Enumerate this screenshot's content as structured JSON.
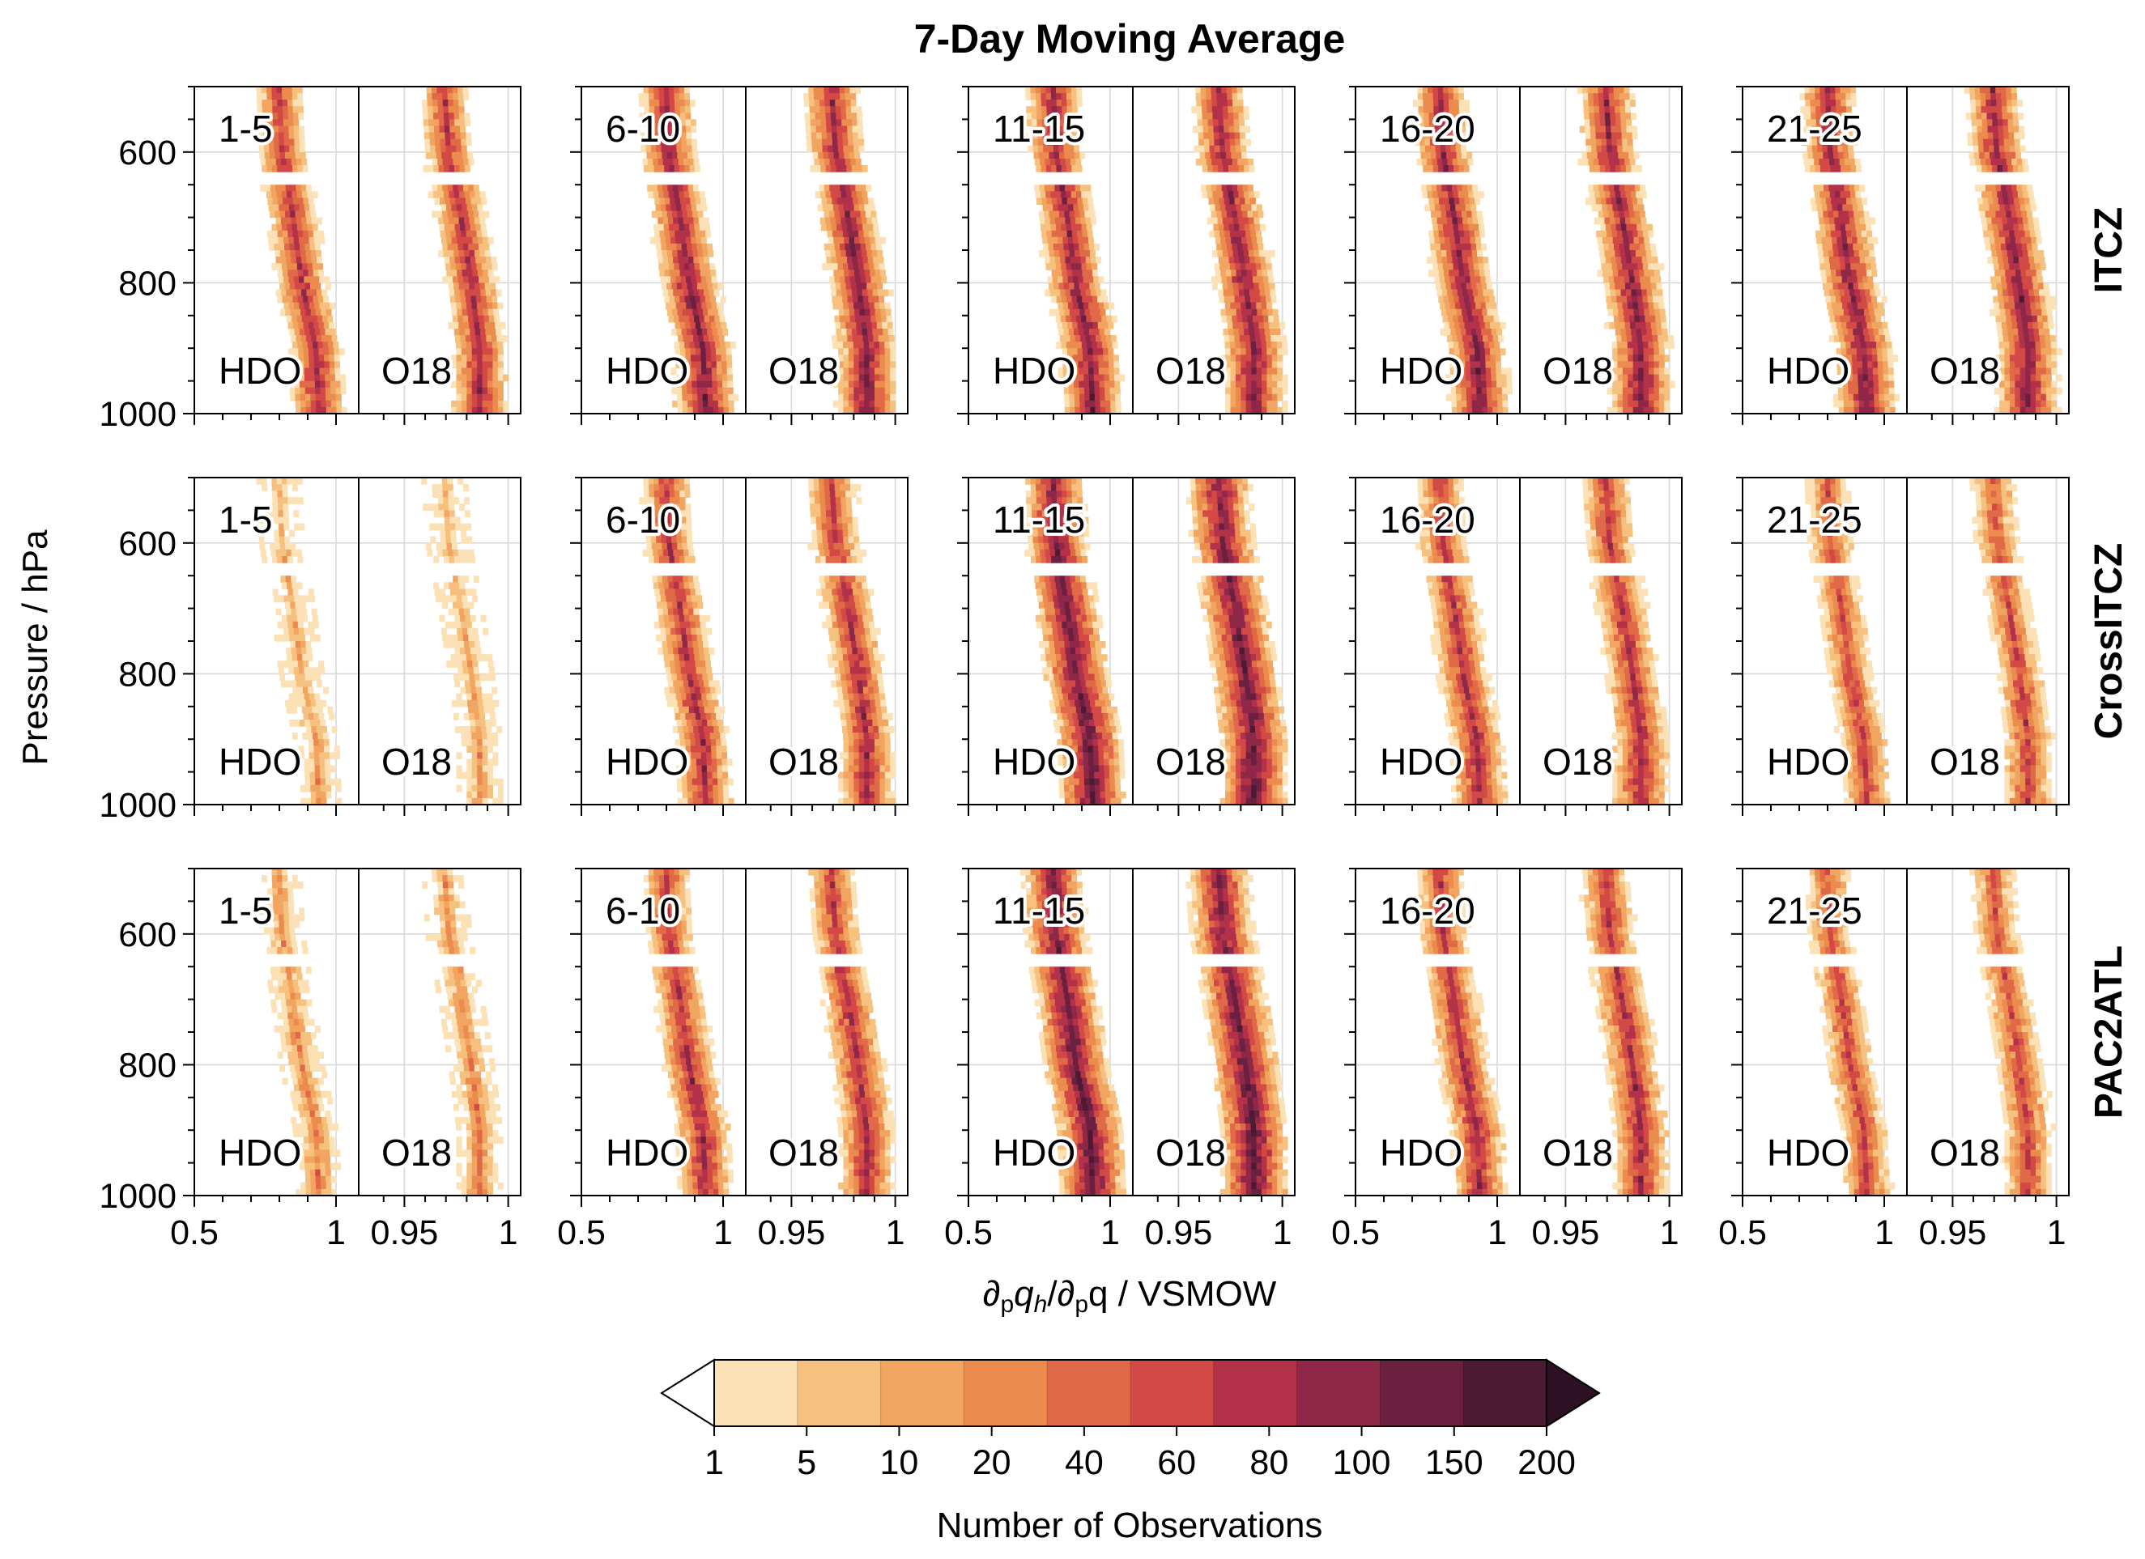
{
  "chart_data": {
    "type": "heatmap",
    "title": "7-Day Moving Average",
    "ylabel": "Pressure / hPa",
    "xlabel_parts": [
      "∂",
      "p",
      "q",
      "h",
      "/∂",
      "p",
      "q / VSMOW"
    ],
    "row_labels": [
      "ITCZ",
      "CrossITCZ",
      "PAC2ATL"
    ],
    "column_labels": [
      "1-5",
      "6-10",
      "11-15",
      "16-20",
      "21-25"
    ],
    "species": [
      "HDO",
      "O18"
    ],
    "y_ticks": [
      600,
      800,
      1000
    ],
    "ylim": [
      500,
      1000
    ],
    "hdo_xlim": [
      0.5,
      1.08
    ],
    "hdo_xticks": [
      0.5,
      1
    ],
    "hdo_xtick_labels": [
      "0.5",
      "1"
    ],
    "o18_xlim": [
      0.928,
      1.006
    ],
    "o18_xticks": [
      0.95,
      1
    ],
    "o18_xtick_labels": [
      "0.95",
      "1"
    ],
    "colorbar": {
      "label": "Number of Observations",
      "boundaries": [
        1,
        5,
        10,
        20,
        40,
        60,
        80,
        100,
        150,
        200
      ],
      "tick_labels": [
        "1",
        "5",
        "10",
        "20",
        "40",
        "60",
        "80",
        "100",
        "150",
        "200"
      ],
      "colors": [
        "#fbe1b5",
        "#f6c17f",
        "#f1a561",
        "#eb8b4d",
        "#e06a47",
        "#d24945",
        "#b33249",
        "#8f2749",
        "#6b2040",
        "#4d1a33"
      ],
      "under_color": "#ffffff",
      "over_color": "#2e1024"
    },
    "profile_model": {
      "hdo_center_pressure": [
        500,
        600,
        700,
        800,
        900,
        1000
      ],
      "hdo_center": [
        0.79,
        0.8,
        0.84,
        0.87,
        0.92,
        0.93
      ],
      "o18_center_pressure": [
        500,
        600,
        700,
        800,
        900,
        1000
      ],
      "o18_center": [
        0.968,
        0.97,
        0.976,
        0.981,
        0.985,
        0.985
      ],
      "count_level_by_row_col": [
        [
          6,
          7,
          7,
          7,
          7
        ],
        [
          2,
          6,
          8,
          6,
          5
        ],
        [
          3,
          6,
          8,
          6,
          5
        ]
      ]
    }
  }
}
